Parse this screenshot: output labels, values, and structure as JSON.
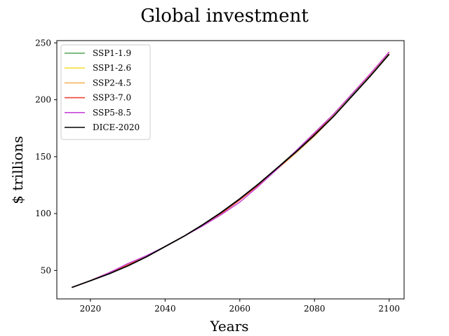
{
  "chart_data": {
    "type": "line",
    "title": "Global investment",
    "xlabel": "Years",
    "ylabel": "$ trillions",
    "xlim": [
      2011,
      2104
    ],
    "ylim": [
      25,
      252
    ],
    "xticks": [
      2020,
      2040,
      2060,
      2080,
      2100
    ],
    "yticks": [
      50,
      100,
      150,
      200,
      250
    ],
    "grid": false,
    "legend_position": "upper-left",
    "x": [
      2015,
      2020,
      2025,
      2030,
      2035,
      2040,
      2045,
      2050,
      2055,
      2060,
      2065,
      2070,
      2075,
      2080,
      2085,
      2090,
      2095,
      2100
    ],
    "series": [
      {
        "name": "SSP1-1.9",
        "color": "#55a355",
        "values": [
          35,
          41,
          48,
          55,
          62,
          71,
          80,
          90,
          101,
          113,
          126,
          140,
          155,
          171,
          187,
          204,
          222,
          241
        ]
      },
      {
        "name": "SSP1-2.6",
        "color": "#f5df3b",
        "values": [
          35,
          41,
          48,
          55,
          62,
          71,
          80,
          90,
          100,
          112,
          125,
          139,
          154,
          169,
          186,
          203,
          221,
          240
        ]
      },
      {
        "name": "SSP2-4.5",
        "color": "#f3b45c",
        "values": [
          35,
          41,
          48,
          55,
          62,
          71,
          80,
          90,
          100,
          112,
          125,
          139,
          153,
          168,
          185,
          203,
          222,
          241
        ]
      },
      {
        "name": "SSP3-7.0",
        "color": "#ee4637",
        "values": [
          35,
          41,
          48,
          55,
          62,
          71,
          80,
          90,
          100,
          112,
          125,
          139,
          154,
          170,
          187,
          205,
          223,
          242
        ]
      },
      {
        "name": "SSP5-8.5",
        "color": "#c847d8",
        "values": [
          35,
          41,
          48,
          56,
          63,
          71,
          80,
          89,
          99,
          110,
          124,
          139,
          155,
          171,
          187,
          205,
          223,
          242
        ]
      },
      {
        "name": "DICE-2020",
        "color": "#000000",
        "values": [
          35,
          41,
          47,
          54,
          62,
          71,
          80,
          90,
          101,
          113,
          126,
          140,
          154,
          169,
          185,
          203,
          221,
          240
        ]
      }
    ]
  }
}
